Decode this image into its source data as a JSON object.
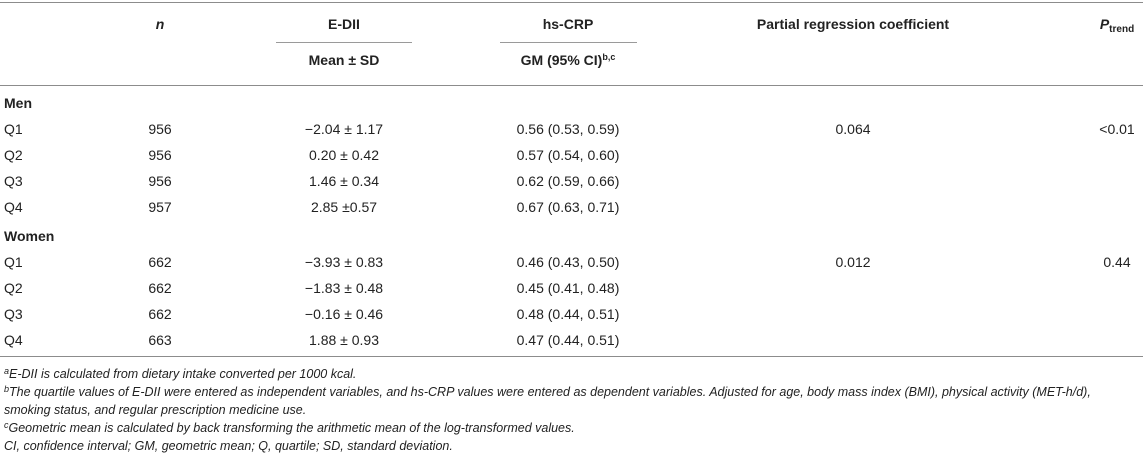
{
  "header": {
    "col_n": "n",
    "col_edii": "E-DII",
    "col_edii_sub": "Mean ± SD",
    "col_hscrp": "hs-CRP",
    "col_hscrp_sub": "GM (95% CI)",
    "col_hscrp_sub_sup": "b,c",
    "col_prc": "Partial regression coefficient",
    "col_p": "P",
    "col_p_sub": "trend"
  },
  "groups": [
    {
      "label": "Men",
      "rows": [
        {
          "q": "Q1",
          "n": "956",
          "edii": "−2.04 ± 1.17",
          "crp": "0.56 (0.53, 0.59)",
          "prc": "0.064",
          "p": "<0.01"
        },
        {
          "q": "Q2",
          "n": "956",
          "edii": "0.20 ± 0.42",
          "crp": "0.57 (0.54, 0.60)",
          "prc": "",
          "p": ""
        },
        {
          "q": "Q3",
          "n": "956",
          "edii": "1.46 ± 0.34",
          "crp": "0.62 (0.59, 0.66)",
          "prc": "",
          "p": ""
        },
        {
          "q": "Q4",
          "n": "957",
          "edii": "2.85 ±0.57",
          "crp": "0.67 (0.63, 0.71)",
          "prc": "",
          "p": ""
        }
      ]
    },
    {
      "label": "Women",
      "rows": [
        {
          "q": "Q1",
          "n": "662",
          "edii": "−3.93 ± 0.83",
          "crp": "0.46 (0.43, 0.50)",
          "prc": "0.012",
          "p": "0.44"
        },
        {
          "q": "Q2",
          "n": "662",
          "edii": "−1.83 ± 0.48",
          "crp": "0.45 (0.41, 0.48)",
          "prc": "",
          "p": ""
        },
        {
          "q": "Q3",
          "n": "662",
          "edii": "−0.16 ± 0.46",
          "crp": "0.48 (0.44, 0.51)",
          "prc": "",
          "p": ""
        },
        {
          "q": "Q4",
          "n": "663",
          "edii": "1.88 ± 0.93",
          "crp": "0.47 (0.44, 0.51)",
          "prc": "",
          "p": ""
        }
      ]
    }
  ],
  "footnotes": {
    "a_mark": "a",
    "a_text": "E-DII is calculated from dietary intake converted per 1000 kcal.",
    "b_mark": "b",
    "b_text": "The quartile values of E-DII were entered as independent variables, and hs-CRP values were entered as dependent variables. Adjusted for age, body mass index (BMI), physical activity (MET-h/d), smoking status, and regular prescription medicine use.",
    "c_mark": "c",
    "c_text": "Geometric mean is calculated by back transforming the arithmetic mean of the log-transformed values.",
    "abbrev": "CI, confidence interval; GM, geometric mean; Q, quartile; SD, standard deviation."
  }
}
